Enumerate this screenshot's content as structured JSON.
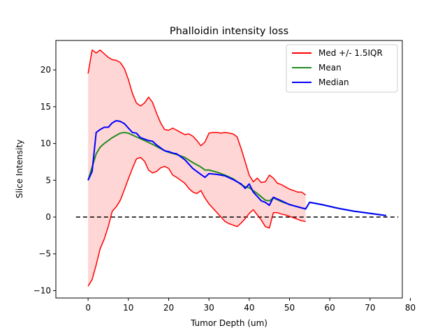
{
  "chart_data": {
    "type": "line",
    "title": "Phalloidin intensity loss",
    "xlabel": "Tumor Depth (um)",
    "ylabel": "Slice Intensity",
    "xlim": [
      -8,
      78
    ],
    "ylim": [
      -11,
      24
    ],
    "xticks": [
      0,
      10,
      20,
      30,
      40,
      50,
      60,
      70,
      80
    ],
    "yticks": [
      -10,
      -5,
      0,
      5,
      10,
      15,
      20
    ],
    "grid": false,
    "legend_position": "top-right",
    "reference_line": {
      "y": 0,
      "x_range": [
        -3,
        77
      ],
      "style": "dashed",
      "color": "#000000"
    },
    "band": {
      "color": "#ffd6d6",
      "legend_label": "Med +/- 1.5IQR"
    },
    "series": [
      {
        "name": "Med +/- 1.5IQR",
        "role": "upper",
        "color": "#ff0000",
        "x": [
          0,
          1,
          2,
          3,
          4,
          5,
          6,
          7,
          8,
          9,
          10,
          11,
          12,
          13,
          14,
          15,
          16,
          17,
          18,
          19,
          20,
          21,
          22,
          23,
          24,
          25,
          26,
          27,
          28,
          29,
          30,
          31,
          32,
          33,
          34,
          35,
          36,
          37,
          38,
          39,
          40,
          41,
          42,
          43,
          44,
          45,
          46,
          47,
          48,
          49,
          50,
          51,
          52,
          53,
          54
        ],
        "y": [
          19.5,
          22.7,
          22.3,
          22.7,
          22.2,
          21.7,
          21.4,
          21.3,
          21.0,
          20.2,
          18.7,
          16.8,
          15.5,
          15.1,
          15.5,
          16.3,
          15.6,
          14.1,
          12.8,
          11.9,
          11.8,
          12.1,
          11.8,
          11.5,
          11.2,
          11.3,
          11.0,
          10.4,
          9.7,
          10.2,
          11.4,
          11.5,
          11.5,
          11.4,
          11.5,
          11.4,
          11.3,
          10.9,
          9.3,
          7.5,
          5.7,
          4.8,
          5.3,
          4.7,
          4.8,
          5.7,
          5.3,
          4.6,
          4.4,
          4.1,
          3.8,
          3.6,
          3.4,
          3.4,
          3.0
        ]
      },
      {
        "name": "",
        "role": "lower",
        "color": "#ff0000",
        "x": [
          0,
          1,
          2,
          3,
          4,
          5,
          6,
          7,
          8,
          9,
          10,
          11,
          12,
          13,
          14,
          15,
          16,
          17,
          18,
          19,
          20,
          21,
          22,
          23,
          24,
          25,
          26,
          27,
          28,
          29,
          30,
          31,
          32,
          33,
          34,
          35,
          36,
          37,
          38,
          39,
          40,
          41,
          42,
          43,
          44,
          45,
          46,
          47,
          48,
          49,
          50,
          51,
          52,
          53,
          54
        ],
        "y": [
          -9.4,
          -8.5,
          -6.5,
          -4.3,
          -3.0,
          -1.3,
          0.8,
          1.4,
          2.3,
          3.7,
          5.2,
          6.6,
          7.9,
          8.1,
          7.6,
          6.4,
          6.0,
          6.2,
          6.7,
          6.9,
          6.6,
          5.7,
          5.4,
          5.0,
          4.6,
          3.9,
          3.4,
          3.2,
          3.6,
          2.6,
          1.8,
          1.2,
          0.6,
          0.0,
          -0.6,
          -0.9,
          -1.1,
          -1.3,
          -0.8,
          -0.2,
          0.5,
          1.0,
          0.3,
          -0.4,
          -1.3,
          -1.5,
          0.6,
          0.6,
          0.4,
          0.3,
          0.1,
          -0.1,
          -0.3,
          -0.5,
          -0.6
        ]
      },
      {
        "name": "Mean",
        "role": "mean",
        "color": "#228B22",
        "x": [
          0,
          1,
          2,
          3,
          4,
          5,
          6,
          7,
          8,
          9,
          10,
          12,
          14,
          16,
          18,
          20,
          22,
          24,
          26,
          28,
          29,
          30,
          32,
          34,
          36,
          38,
          39,
          40,
          42,
          44,
          45,
          46,
          48,
          50,
          52,
          54,
          55,
          58,
          62,
          66,
          70,
          74
        ],
        "y": [
          5.0,
          6.8,
          8.6,
          9.5,
          10.0,
          10.4,
          10.8,
          11.1,
          11.4,
          11.5,
          11.4,
          10.9,
          10.4,
          9.9,
          9.3,
          8.8,
          8.5,
          8.1,
          7.4,
          6.8,
          6.4,
          6.4,
          6.1,
          5.7,
          5.2,
          4.4,
          4.1,
          4.0,
          3.2,
          2.3,
          2.2,
          2.6,
          2.1,
          1.7,
          1.4,
          1.1,
          2.0,
          1.7,
          1.2,
          0.8,
          0.5,
          0.2
        ]
      },
      {
        "name": "Median",
        "role": "median",
        "color": "#0000ff",
        "x": [
          0,
          1,
          2,
          3,
          4,
          5,
          6,
          7,
          8,
          9,
          10,
          11,
          12,
          13,
          14,
          15,
          16,
          17,
          18,
          19,
          20,
          21,
          22,
          23,
          24,
          25,
          26,
          27,
          28,
          29,
          30,
          32,
          34,
          36,
          38,
          39,
          40,
          41,
          42,
          43,
          44,
          45,
          46,
          48,
          50,
          52,
          54,
          55,
          58,
          62,
          66,
          70,
          74
        ],
        "y": [
          5.0,
          6.2,
          11.5,
          11.9,
          12.2,
          12.2,
          12.8,
          13.1,
          13.0,
          12.7,
          12.1,
          11.5,
          11.4,
          10.8,
          10.6,
          10.4,
          10.3,
          9.8,
          9.4,
          9.0,
          8.9,
          8.7,
          8.6,
          8.2,
          7.8,
          7.2,
          6.6,
          6.2,
          5.8,
          5.4,
          5.9,
          5.8,
          5.6,
          5.1,
          4.5,
          3.9,
          4.5,
          3.4,
          2.8,
          2.2,
          2.0,
          1.6,
          2.7,
          2.2,
          1.7,
          1.4,
          1.1,
          2.0,
          1.7,
          1.2,
          0.8,
          0.5,
          0.2
        ]
      }
    ],
    "legend": [
      {
        "label": "Med +/- 1.5IQR",
        "color": "#ff0000"
      },
      {
        "label": "Mean",
        "color": "#228B22"
      },
      {
        "label": "Median",
        "color": "#0000ff"
      }
    ]
  }
}
